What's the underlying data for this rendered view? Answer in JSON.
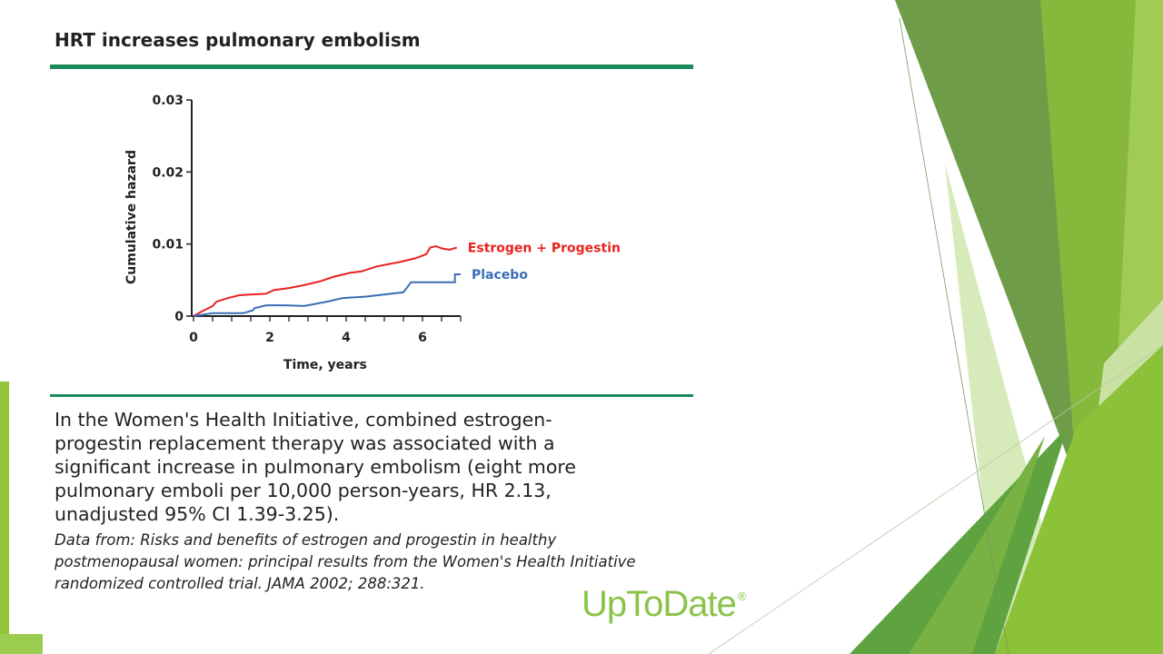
{
  "slide": {
    "title": "HRT increases pulmonary embolism",
    "caption": "In the Women's Health Initiative, combined estrogen-progestin replacement therapy was associated with a significant increase in pulmonary embolism (eight more pulmonary emboli per 10,000 person-years, HR 2.13, unadjusted 95% CI 1.39-3.25).",
    "source": "Data from: Risks and benefits of estrogen and progestin in healthy postmenopausal women: principal results from the Women's Health Initiative randomized controlled trial. JAMA 2002; 288:321.",
    "brand": "UpToDate",
    "brand_mark": "®"
  },
  "colors": {
    "rule": "#1a8a5a",
    "estrogen": "#e8231f",
    "placebo": "#3b6db5",
    "green_light": "#c9e3a8",
    "green_mid": "#7cb83a",
    "green_dark": "#5e9a38",
    "green_bright": "#8fc43b",
    "brand": "#8bc34a"
  },
  "chart_data": {
    "type": "line",
    "xlabel": "Time, years",
    "ylabel": "Cumulative hazard",
    "xlim": [
      0,
      7
    ],
    "ylim": [
      0,
      0.03
    ],
    "xticks": [
      0,
      2,
      4,
      6
    ],
    "yticks": [
      0,
      0.01,
      0.02,
      0.03
    ],
    "ytick_labels": [
      "0",
      "0.01",
      "0.02",
      "0.03"
    ],
    "legend_placement": "right, at line ends",
    "series": [
      {
        "name": "Estrogen + Progestin",
        "color_key": "estrogen",
        "points": [
          [
            0,
            0
          ],
          [
            0.2,
            0.0006
          ],
          [
            0.35,
            0.001
          ],
          [
            0.5,
            0.0014
          ],
          [
            0.6,
            0.002
          ],
          [
            0.9,
            0.0025
          ],
          [
            1.2,
            0.0029
          ],
          [
            1.5,
            0.003
          ],
          [
            1.9,
            0.0031
          ],
          [
            2.1,
            0.0036
          ],
          [
            2.5,
            0.0039
          ],
          [
            2.9,
            0.0043
          ],
          [
            3.3,
            0.0048
          ],
          [
            3.7,
            0.0055
          ],
          [
            4.1,
            0.006
          ],
          [
            4.4,
            0.0062
          ],
          [
            4.8,
            0.0069
          ],
          [
            5.1,
            0.0072
          ],
          [
            5.4,
            0.0075
          ],
          [
            5.8,
            0.008
          ],
          [
            6.1,
            0.0086
          ],
          [
            6.2,
            0.0095
          ],
          [
            6.35,
            0.0097
          ],
          [
            6.5,
            0.0094
          ],
          [
            6.7,
            0.0092
          ],
          [
            6.9,
            0.0095
          ]
        ]
      },
      {
        "name": "Placebo",
        "color_key": "placebo",
        "points": [
          [
            0,
            0
          ],
          [
            0.5,
            0.0004
          ],
          [
            1.3,
            0.0004
          ],
          [
            1.55,
            0.0008
          ],
          [
            1.6,
            0.0011
          ],
          [
            1.9,
            0.0015
          ],
          [
            2.4,
            0.0015
          ],
          [
            2.9,
            0.0014
          ],
          [
            3.5,
            0.002
          ],
          [
            3.9,
            0.0025
          ],
          [
            4.5,
            0.0027
          ],
          [
            5.5,
            0.0033
          ],
          [
            5.7,
            0.0047
          ],
          [
            6.1,
            0.0047
          ],
          [
            6.85,
            0.0047
          ],
          [
            6.85,
            0.0058
          ],
          [
            7.0,
            0.0058
          ]
        ]
      }
    ]
  }
}
